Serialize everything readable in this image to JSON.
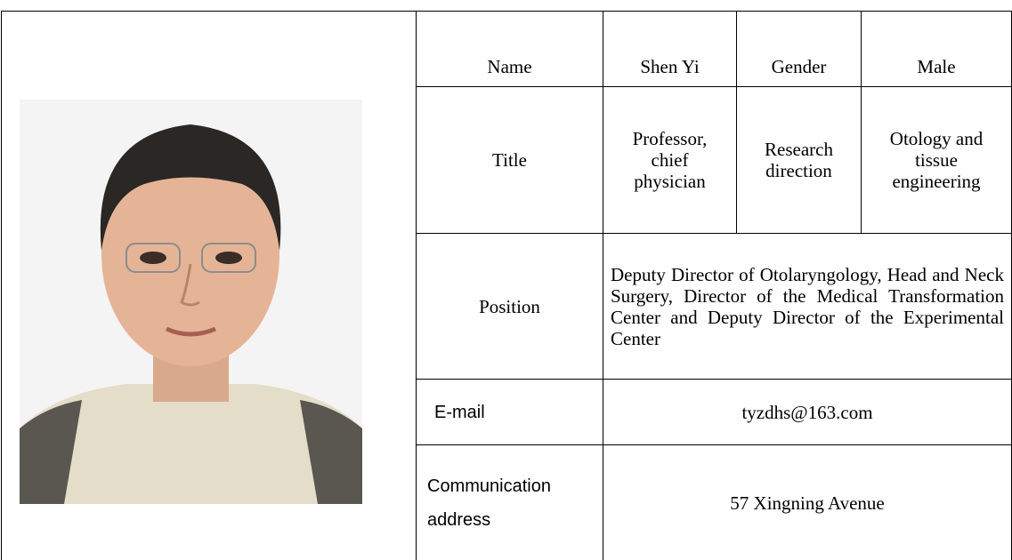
{
  "table": {
    "rows": [
      [
        "Name",
        "Shen Yi",
        "Gender",
        "Male"
      ],
      [
        "Title",
        "Professor, chief physician",
        "Research direction",
        "Otology and tissue engineering"
      ],
      [
        "Position",
        "Deputy Director of Otolaryngology, Head and Neck Surgery, Director of the Medical Transformation Center and Deputy Director of the Experimental Center"
      ],
      [
        "E-mail",
        "tyzdhs@163.com"
      ],
      [
        "Communication address",
        "57 Xingning Avenue"
      ]
    ]
  }
}
